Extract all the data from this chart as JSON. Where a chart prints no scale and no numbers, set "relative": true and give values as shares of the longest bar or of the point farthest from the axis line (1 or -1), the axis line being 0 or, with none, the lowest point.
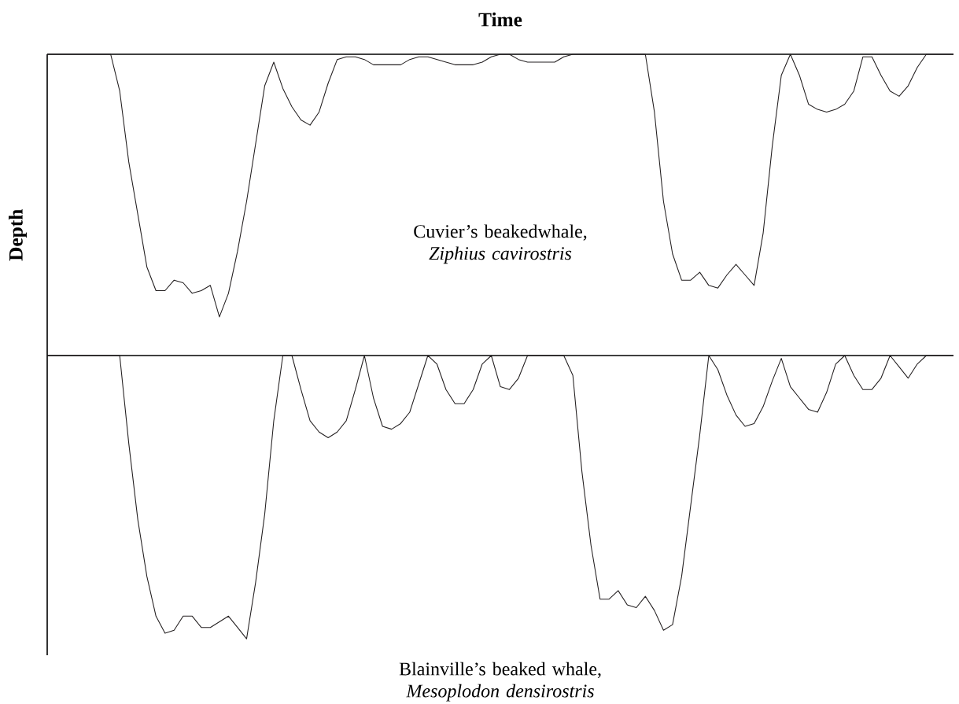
{
  "chart_data": [
    {
      "type": "line",
      "title": "Time",
      "ylabel": "Depth",
      "relative": true,
      "tick_labels": false,
      "annotations": [
        "Cuvier’s beakedwhale, *Ziphius cavirostris*"
      ],
      "categories": [
        null,
        null,
        null,
        null,
        null,
        null,
        null,
        null,
        null,
        null,
        null,
        null,
        null,
        null,
        null,
        null,
        null,
        null,
        null,
        null,
        null,
        null,
        null,
        null,
        null,
        null,
        null,
        null,
        null,
        null,
        null,
        null,
        null,
        null,
        null,
        null,
        null,
        null,
        null,
        null,
        null,
        null,
        null,
        null,
        null,
        null,
        null,
        null,
        null,
        null,
        null,
        null,
        null,
        null,
        null,
        null,
        null,
        null,
        null,
        null,
        null,
        null,
        null,
        null,
        null,
        null,
        null,
        null,
        null,
        null,
        null,
        null,
        null,
        null,
        null,
        null,
        null,
        null,
        null,
        null,
        null,
        null,
        null,
        null,
        null,
        null,
        null,
        null,
        null,
        null,
        null,
        null,
        null,
        null,
        null,
        null,
        null,
        null,
        null,
        null,
        null
      ],
      "series": [
        {
          "color": "#231f20",
          "values": [
            0,
            0,
            0,
            0,
            0,
            0,
            0,
            0,
            -0.14,
            -0.41,
            -0.61,
            -0.81,
            -0.9,
            -0.9,
            -0.86,
            -0.87,
            -0.91,
            -0.9,
            -0.88,
            -1,
            -0.91,
            -0.75,
            -0.56,
            -0.34,
            -0.12,
            -0.03,
            -0.13,
            -0.2,
            -0.25,
            -0.27,
            -0.22,
            -0.11,
            -0.02,
            -0.01,
            -0.01,
            -0.02,
            -0.04,
            -0.04,
            -0.04,
            -0.04,
            -0.02,
            -0.01,
            -0.01,
            -0.02,
            -0.03,
            -0.04,
            -0.04,
            -0.04,
            -0.03,
            -0.01,
            0,
            0,
            -0.02,
            -0.03,
            -0.03,
            -0.03,
            -0.03,
            -0.01,
            0,
            0,
            0,
            0,
            0,
            0,
            0,
            0,
            0,
            -0.22,
            -0.56,
            -0.76,
            -0.86,
            -0.86,
            -0.83,
            -0.88,
            -0.89,
            -0.84,
            -0.8,
            -0.84,
            -0.88,
            -0.68,
            -0.35,
            -0.08,
            0,
            -0.08,
            -0.19,
            -0.21,
            -0.22,
            -0.21,
            -0.19,
            -0.14,
            -0.01,
            -0.01,
            -0.08,
            -0.14,
            -0.16,
            -0.12,
            -0.05,
            0,
            0,
            0,
            0
          ]
        }
      ]
    },
    {
      "type": "line",
      "relative": true,
      "tick_labels": false,
      "annotations": [
        "Blainville’s beaked whale, *Mesoplodon densirostris*"
      ],
      "categories": [
        null,
        null,
        null,
        null,
        null,
        null,
        null,
        null,
        null,
        null,
        null,
        null,
        null,
        null,
        null,
        null,
        null,
        null,
        null,
        null,
        null,
        null,
        null,
        null,
        null,
        null,
        null,
        null,
        null,
        null,
        null,
        null,
        null,
        null,
        null,
        null,
        null,
        null,
        null,
        null,
        null,
        null,
        null,
        null,
        null,
        null,
        null,
        null,
        null,
        null,
        null,
        null,
        null,
        null,
        null,
        null,
        null,
        null,
        null,
        null,
        null,
        null,
        null,
        null,
        null,
        null,
        null,
        null,
        null,
        null,
        null,
        null,
        null,
        null,
        null,
        null,
        null,
        null,
        null,
        null,
        null,
        null,
        null,
        null,
        null,
        null,
        null,
        null,
        null,
        null,
        null,
        null,
        null,
        null,
        null,
        null,
        null,
        null,
        null,
        null,
        null
      ],
      "series": [
        {
          "color": "#231f20",
          "values": [
            0,
            0,
            0,
            0,
            0,
            0,
            0,
            0,
            0,
            -0.31,
            -0.58,
            -0.78,
            -0.92,
            -0.98,
            -0.97,
            -0.92,
            -0.92,
            -0.96,
            -0.96,
            -0.94,
            -0.92,
            -0.96,
            -1,
            -0.8,
            -0.56,
            -0.23,
            0,
            0,
            -0.12,
            -0.23,
            -0.27,
            -0.29,
            -0.27,
            -0.23,
            -0.12,
            0,
            -0.15,
            -0.25,
            -0.26,
            -0.24,
            -0.2,
            -0.1,
            0,
            -0.03,
            -0.12,
            -0.17,
            -0.17,
            -0.12,
            -0.03,
            0,
            -0.11,
            -0.12,
            -0.08,
            0,
            0,
            0,
            0,
            0,
            -0.07,
            -0.41,
            -0.67,
            -0.86,
            -0.86,
            -0.83,
            -0.88,
            -0.89,
            -0.85,
            -0.9,
            -0.97,
            -0.95,
            -0.78,
            -0.53,
            -0.28,
            0,
            -0.05,
            -0.14,
            -0.21,
            -0.25,
            -0.24,
            -0.18,
            -0.09,
            -0.01,
            -0.11,
            -0.15,
            -0.19,
            -0.2,
            -0.13,
            -0.03,
            0,
            -0.07,
            -0.12,
            -0.12,
            -0.08,
            0,
            -0.04,
            -0.08,
            -0.03,
            0,
            0,
            0,
            0
          ]
        }
      ]
    }
  ]
}
